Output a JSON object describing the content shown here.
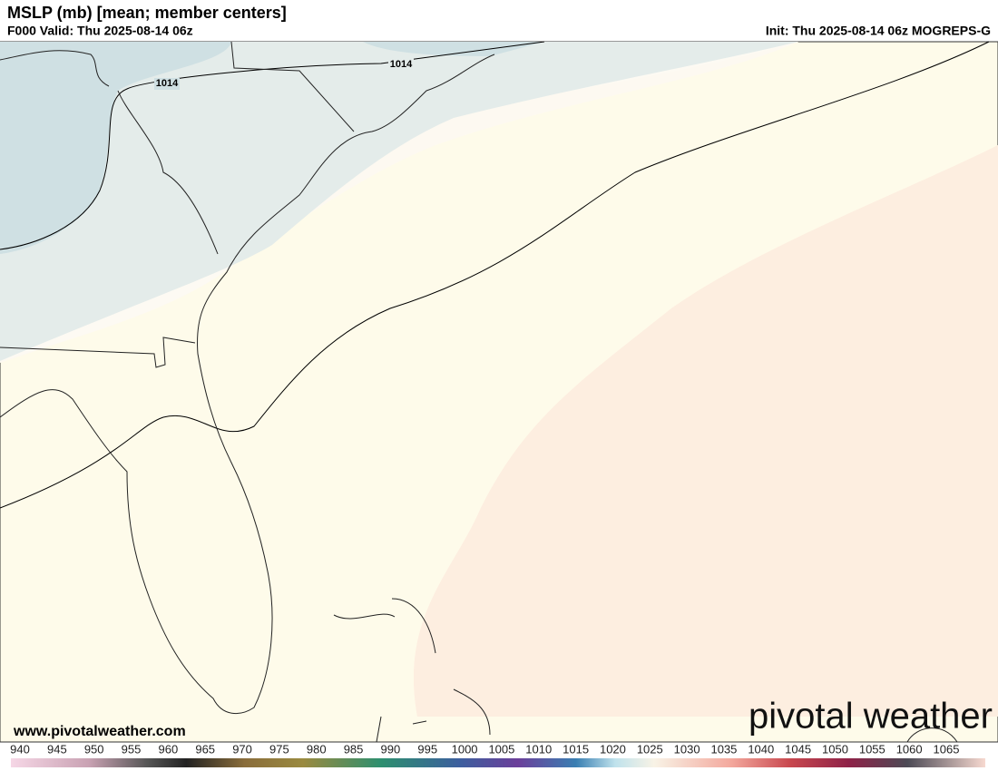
{
  "header": {
    "title": "MSLP (mb) [mean; member centers]",
    "valid": "F000 Valid: Thu 2025-08-14 06z",
    "init": "Init: Thu 2025-08-14 06z MOGREPS-G"
  },
  "map": {
    "contour_labels": [
      "1014",
      "1014"
    ]
  },
  "footer": {
    "website": "www.pivotalweather.com",
    "logo": "pivotal weather"
  },
  "colorbar": {
    "ticks": [
      940,
      945,
      950,
      955,
      960,
      965,
      970,
      975,
      980,
      985,
      990,
      995,
      1000,
      1005,
      1010,
      1015,
      1020,
      1025,
      1030,
      1035,
      1040,
      1045,
      1050,
      1055,
      1060,
      1065
    ]
  }
}
